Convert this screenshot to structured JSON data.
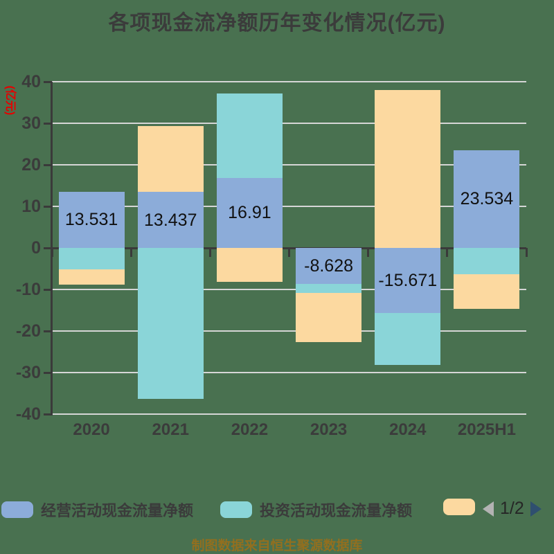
{
  "title": "各项现金流净额历年变化情况(亿元)",
  "footer": "制图数据来自恒生聚源数据库",
  "colors": {
    "background": "#497150",
    "grid": "#d6d6d6",
    "axis": "#3a3a3a",
    "ink": "#3b3b3b",
    "axis_name_red": "#e60000",
    "data_label": "#111111",
    "footer_text": "#926f1f",
    "pager_left_arrow": "#b3b3b3",
    "pager_right_arrow": "#2f4f6f",
    "series_operating": "#8cacd9",
    "series_investing": "#8ad5d8",
    "series_third": "#fcd9a0"
  },
  "legend": {
    "items": [
      {
        "label": "经营活动现金流量净额",
        "color": "#8cacd9"
      },
      {
        "label": "投资活动现金流量净额",
        "color": "#8ad5d8"
      },
      {
        "label": "",
        "color": "#fcd9a0"
      }
    ],
    "pager": {
      "text": "1/2"
    }
  },
  "chart_data": {
    "type": "bar",
    "stacked": true,
    "title": "各项现金流净额历年变化情况(亿元)",
    "categories": [
      "2020",
      "2021",
      "2022",
      "2023",
      "2024",
      "2025H1"
    ],
    "series": [
      {
        "name": "经营活动现金流量净额",
        "color": "#8cacd9",
        "values": [
          13.531,
          13.437,
          16.91,
          -8.628,
          -15.671,
          23.534
        ],
        "labels": [
          "13.531",
          "13.437",
          "16.91",
          "-8.628",
          "-15.671",
          "23.534"
        ]
      },
      {
        "name": "投资活动现金流量净额",
        "color": "#8ad5d8",
        "values": [
          -5.2,
          -36.3,
          20.3,
          -2.2,
          -12.5,
          -6.3
        ]
      },
      {
        "name": "",
        "color": "#fcd9a0",
        "values": [
          -3.7,
          15.9,
          -8.2,
          -11.8,
          38.0,
          -8.3
        ]
      }
    ],
    "yaxis": {
      "name": "(亿元)",
      "min": -40,
      "max": 40,
      "step": 10
    },
    "xlabel": "",
    "ylabel": "(亿元)",
    "grid": true,
    "legend_position": "bottom"
  }
}
